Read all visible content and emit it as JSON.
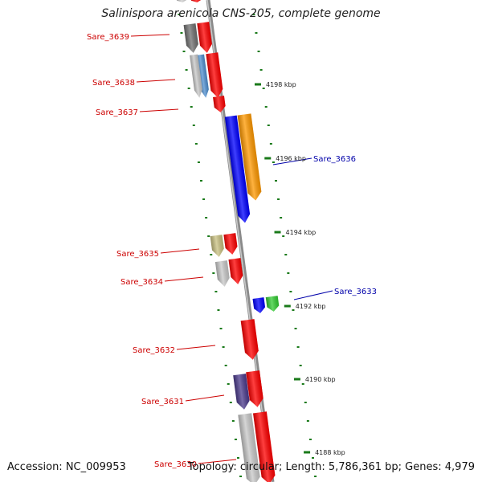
{
  "header": {
    "title": "Salinispora arenicola CNS-205, complete genome"
  },
  "footer": {
    "accession": "Accession: NC_009953",
    "summary": "Topology: circular; Length: 5,786,361 bp; Genes: 4,979"
  },
  "colors": {
    "minus_label": "#cc0000",
    "plus_label": "#0000aa",
    "tick": "#1a7a1a",
    "backbone": "#808080"
  },
  "genes": [
    {
      "id": "g-top-a",
      "label": "",
      "strand": "minus",
      "color": "#ff0000"
    },
    {
      "id": "g-top-b",
      "label": "",
      "strand": "minus",
      "color": "#d0d0d0"
    },
    {
      "id": "Sare_3639",
      "label": "Sare_3639",
      "strand": "minus",
      "color": "#ff0000"
    },
    {
      "id": "Sare_3639b",
      "label": "",
      "strand": "minus",
      "color": "#707070"
    },
    {
      "id": "Sare_3638",
      "label": "Sare_3638",
      "strand": "minus",
      "color": "#ff0000"
    },
    {
      "id": "Sare_3638b",
      "label": "",
      "strand": "minus",
      "color": "#4f8fd0"
    },
    {
      "id": "Sare_3638c",
      "label": "",
      "strand": "minus",
      "color": "#c8c8c8"
    },
    {
      "id": "Sare_3637",
      "label": "Sare_3637",
      "strand": "minus",
      "color": "#ff0000"
    },
    {
      "id": "Sare_3636",
      "label": "Sare_3636",
      "strand": "plus",
      "color": "#ff9900"
    },
    {
      "id": "Sare_3636b",
      "label": "",
      "strand": "plus",
      "color": "#0000ff"
    },
    {
      "id": "Sare_3635",
      "label": "Sare_3635",
      "strand": "minus",
      "color": "#ff0000"
    },
    {
      "id": "Sare_3635b",
      "label": "",
      "strand": "minus",
      "color": "#c8c080"
    },
    {
      "id": "Sare_3634",
      "label": "Sare_3634",
      "strand": "minus",
      "color": "#ff0000"
    },
    {
      "id": "Sare_3634b",
      "label": "",
      "strand": "minus",
      "color": "#c8c8c8"
    },
    {
      "id": "Sare_3633",
      "label": "Sare_3633",
      "strand": "plus",
      "color": "#33cc33"
    },
    {
      "id": "Sare_3633b",
      "label": "",
      "strand": "plus",
      "color": "#0000ff"
    },
    {
      "id": "Sare_3632",
      "label": "Sare_3632",
      "strand": "minus",
      "color": "#ff0000"
    },
    {
      "id": "Sare_3631",
      "label": "Sare_3631",
      "strand": "minus",
      "color": "#ff0000"
    },
    {
      "id": "Sare_3631b",
      "label": "",
      "strand": "minus",
      "color": "#4b3a8c"
    },
    {
      "id": "Sare_3630",
      "label": "Sare_3630",
      "strand": "minus",
      "color": "#ff0000"
    },
    {
      "id": "Sare_3630b",
      "label": "",
      "strand": "minus",
      "color": "#c8c8c8"
    }
  ],
  "ticks": [
    {
      "label": "4198 kbp"
    },
    {
      "label": "4196 kbp"
    },
    {
      "label": "4194 kbp"
    },
    {
      "label": "4192 kbp"
    },
    {
      "label": "4190 kbp"
    },
    {
      "label": "4188 kbp"
    }
  ]
}
